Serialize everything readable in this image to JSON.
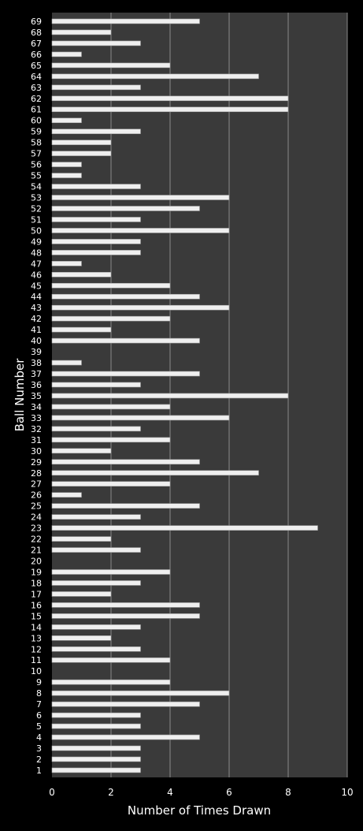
{
  "chart_data": {
    "type": "bar",
    "orientation": "horizontal",
    "xlabel": "Number of Times Drawn",
    "ylabel": "Ball Number",
    "xlim": [
      0,
      10
    ],
    "x_ticks": [
      0,
      2,
      4,
      6,
      8,
      10
    ],
    "grid": "vertical",
    "colors": {
      "page_background": "#000000",
      "plot_background": "#3a3a3a",
      "bar_fill": "#efefef",
      "gridline": "#8a8a8a",
      "text": "#ffffff"
    },
    "categories": [
      "1",
      "2",
      "3",
      "4",
      "5",
      "6",
      "7",
      "8",
      "9",
      "10",
      "11",
      "12",
      "13",
      "14",
      "15",
      "16",
      "17",
      "18",
      "19",
      "20",
      "21",
      "22",
      "23",
      "24",
      "25",
      "26",
      "27",
      "28",
      "29",
      "30",
      "31",
      "32",
      "33",
      "34",
      "35",
      "36",
      "37",
      "38",
      "39",
      "40",
      "41",
      "42",
      "43",
      "44",
      "45",
      "46",
      "47",
      "48",
      "49",
      "50",
      "51",
      "52",
      "53",
      "54",
      "55",
      "56",
      "57",
      "58",
      "59",
      "60",
      "61",
      "62",
      "63",
      "64",
      "65",
      "66",
      "67",
      "68",
      "69"
    ],
    "values": [
      3,
      3,
      3,
      5,
      3,
      3,
      5,
      6,
      4,
      0,
      4,
      3,
      2,
      3,
      5,
      5,
      2,
      3,
      4,
      0,
      3,
      2,
      9,
      3,
      5,
      1,
      4,
      7,
      5,
      2,
      4,
      3,
      6,
      4,
      8,
      3,
      5,
      1,
      0,
      5,
      2,
      4,
      6,
      5,
      4,
      2,
      1,
      3,
      3,
      6,
      3,
      5,
      6,
      3,
      1,
      1,
      2,
      2,
      3,
      1,
      8,
      8,
      3,
      7,
      4,
      1,
      3,
      2,
      5
    ]
  }
}
